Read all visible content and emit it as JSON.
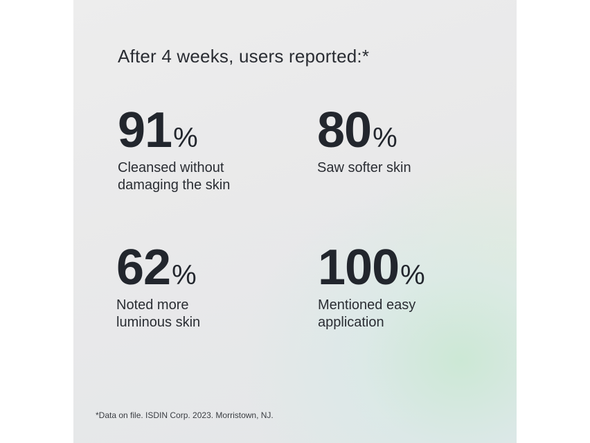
{
  "heading": "After 4 weeks, users reported:*",
  "stats": [
    {
      "value": "91",
      "unit": "%",
      "desc_line1": "Cleansed without",
      "desc_line2": "damaging the skin"
    },
    {
      "value": "80",
      "unit": "%",
      "desc_line1": "Saw softer skin",
      "desc_line2": ""
    },
    {
      "value": "62",
      "unit": "%",
      "desc_line1": "Noted more",
      "desc_line2": "luminous skin"
    },
    {
      "value": "100",
      "unit": "%",
      "desc_line1": "Mentioned easy",
      "desc_line2": "application"
    }
  ],
  "footnote": "*Data on file. ISDIN Corp. 2023. Morristown, NJ.",
  "colors": {
    "text": "#22262d",
    "panel_background": "#ebebeb",
    "gradient_accent": "#c8e8d2"
  }
}
